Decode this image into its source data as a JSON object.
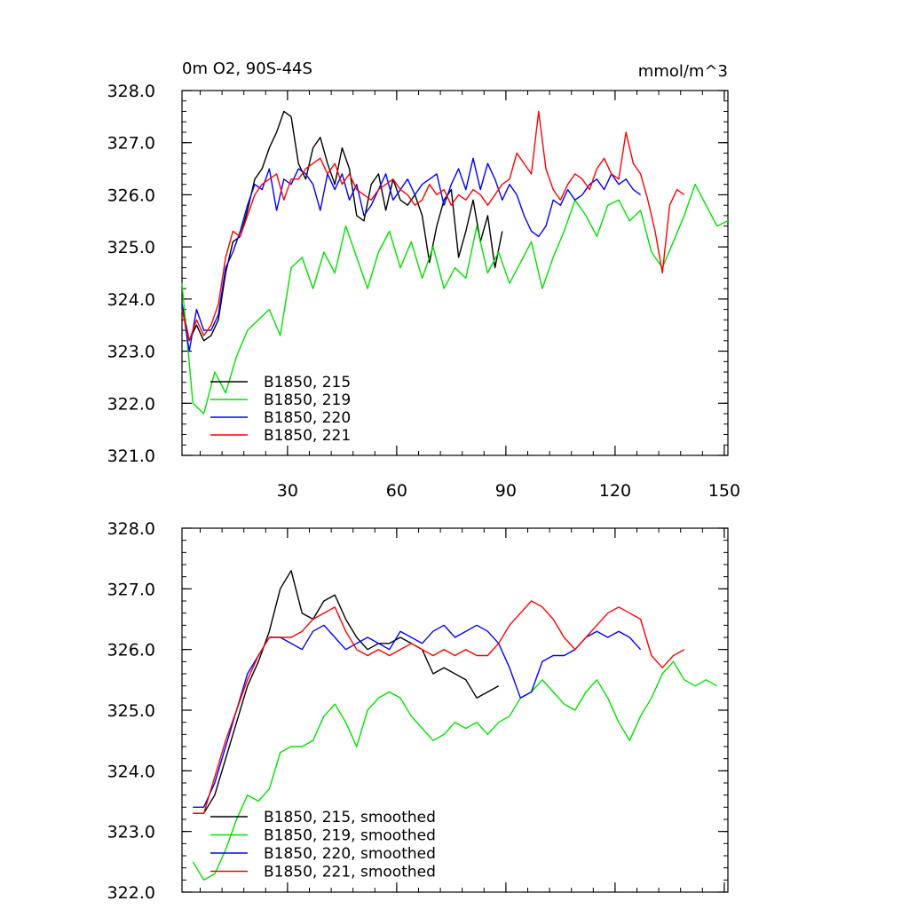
{
  "page_title": "0m O2, 90S-44S",
  "units": "mmol/m^3",
  "colors": {
    "s215": "#000000",
    "s219": "#00e000",
    "s220": "#0000ff",
    "s221": "#ff0000"
  },
  "chart_data": [
    {
      "type": "line",
      "title": "0m O2, 90S-44S",
      "units_label": "mmol/m^3",
      "xlim": [
        1,
        151
      ],
      "ylim": [
        321.0,
        328.0
      ],
      "xticks": [
        30,
        60,
        90,
        120,
        150
      ],
      "xtick_labels": [
        "30",
        "60",
        "90",
        "120",
        "150"
      ],
      "yticks": [
        321.0,
        322.0,
        323.0,
        324.0,
        325.0,
        326.0,
        327.0,
        328.0
      ],
      "ytick_labels": [
        "321.0",
        "322.0",
        "323.0",
        "324.0",
        "325.0",
        "326.0",
        "327.0",
        "328.0"
      ],
      "legend_position": "bottom-left",
      "series": [
        {
          "name": "B1850, 215",
          "color": "#000000",
          "x": [
            1,
            3,
            5,
            7,
            9,
            11,
            13,
            15,
            17,
            19,
            21,
            23,
            25,
            27,
            29,
            31,
            33,
            35,
            37,
            39,
            41,
            43,
            45,
            47,
            49,
            51,
            53,
            55,
            57,
            59,
            61,
            63,
            65,
            67,
            69,
            71,
            73,
            75,
            77,
            79,
            81,
            83,
            85,
            87,
            89
          ],
          "y": [
            323.9,
            323.2,
            323.5,
            323.2,
            323.3,
            323.6,
            324.5,
            325.1,
            325.2,
            325.7,
            326.3,
            326.5,
            326.9,
            327.2,
            327.6,
            327.5,
            326.6,
            326.3,
            326.9,
            327.1,
            326.6,
            326.2,
            326.9,
            326.5,
            325.6,
            325.5,
            326.2,
            326.4,
            325.7,
            326.3,
            325.9,
            325.8,
            326.0,
            325.6,
            324.7,
            325.4,
            325.9,
            326.1,
            324.8,
            325.3,
            325.9,
            325.1,
            325.6,
            324.6,
            325.3
          ]
        },
        {
          "name": "B1850, 219",
          "color": "#00e000",
          "x": [
            1,
            4,
            7,
            10,
            13,
            16,
            19,
            22,
            25,
            28,
            31,
            34,
            37,
            40,
            43,
            46,
            49,
            52,
            55,
            58,
            61,
            64,
            67,
            70,
            73,
            76,
            79,
            82,
            85,
            88,
            91,
            94,
            97,
            100,
            103,
            106,
            109,
            112,
            115,
            118,
            121,
            124,
            127,
            130,
            133,
            136,
            139,
            142,
            145,
            148,
            151
          ],
          "y": [
            324.3,
            322.0,
            321.8,
            322.6,
            322.2,
            322.9,
            323.4,
            323.6,
            323.8,
            323.3,
            324.6,
            324.8,
            324.2,
            324.9,
            324.5,
            325.4,
            324.8,
            324.2,
            324.9,
            325.3,
            324.6,
            325.1,
            324.4,
            325.0,
            324.2,
            324.6,
            324.4,
            325.4,
            324.5,
            324.9,
            324.3,
            324.7,
            325.1,
            324.2,
            324.8,
            325.3,
            325.9,
            325.6,
            325.2,
            325.8,
            325.9,
            325.5,
            325.7,
            324.9,
            324.6,
            325.1,
            325.6,
            326.2,
            325.8,
            325.4,
            325.5
          ]
        },
        {
          "name": "B1850, 220",
          "color": "#0000ff",
          "x": [
            1,
            3,
            5,
            7,
            9,
            11,
            13,
            15,
            17,
            19,
            21,
            23,
            25,
            27,
            29,
            31,
            33,
            35,
            37,
            39,
            41,
            43,
            45,
            47,
            49,
            51,
            53,
            55,
            57,
            59,
            61,
            63,
            65,
            67,
            69,
            71,
            73,
            75,
            77,
            79,
            81,
            83,
            85,
            87,
            89,
            91,
            93,
            95,
            97,
            99,
            101,
            103,
            105,
            107,
            109,
            111,
            113,
            115,
            117,
            119,
            121,
            123,
            125,
            127
          ],
          "y": [
            323.9,
            323.0,
            323.8,
            323.4,
            323.4,
            323.7,
            324.6,
            324.9,
            325.3,
            325.8,
            326.2,
            326.1,
            326.5,
            325.7,
            326.3,
            326.2,
            326.5,
            326.4,
            326.2,
            325.7,
            326.4,
            326.1,
            326.4,
            325.9,
            326.2,
            325.6,
            325.8,
            326.1,
            326.4,
            325.9,
            326.1,
            326.3,
            326.0,
            326.2,
            326.3,
            326.4,
            325.8,
            326.2,
            326.5,
            326.1,
            326.7,
            326.1,
            326.6,
            326.3,
            325.9,
            326.2,
            326.0,
            325.6,
            325.3,
            325.2,
            325.4,
            325.9,
            325.8,
            326.1,
            325.9,
            326.0,
            326.2,
            326.3,
            326.1,
            326.4,
            326.2,
            326.3,
            326.1,
            326.0
          ]
        },
        {
          "name": "B1850, 221",
          "color": "#ff0000",
          "x": [
            1,
            3,
            5,
            7,
            9,
            11,
            13,
            15,
            17,
            19,
            21,
            23,
            25,
            27,
            29,
            31,
            33,
            35,
            37,
            39,
            41,
            43,
            45,
            47,
            49,
            51,
            53,
            55,
            57,
            59,
            61,
            63,
            65,
            67,
            69,
            71,
            73,
            75,
            77,
            79,
            81,
            83,
            85,
            87,
            89,
            91,
            93,
            95,
            97,
            99,
            101,
            103,
            105,
            107,
            109,
            111,
            113,
            115,
            117,
            119,
            121,
            123,
            125,
            127,
            129,
            131,
            133,
            135,
            137,
            139
          ],
          "y": [
            323.8,
            323.2,
            323.6,
            323.3,
            323.5,
            323.9,
            324.8,
            325.3,
            325.2,
            325.6,
            326.0,
            326.2,
            326.3,
            326.4,
            325.9,
            326.3,
            326.3,
            326.5,
            326.6,
            326.7,
            326.4,
            326.6,
            326.2,
            326.4,
            326.1,
            326.0,
            325.9,
            326.1,
            326.2,
            326.3,
            326.1,
            326.0,
            325.8,
            325.9,
            326.2,
            326.0,
            326.1,
            325.8,
            326.0,
            325.9,
            326.1,
            326.0,
            325.8,
            326.0,
            326.2,
            326.3,
            326.8,
            326.6,
            326.4,
            327.6,
            326.5,
            326.1,
            325.9,
            326.2,
            326.4,
            326.3,
            326.1,
            326.5,
            326.7,
            326.4,
            326.3,
            327.2,
            326.6,
            326.4,
            325.9,
            325.3,
            324.5,
            325.8,
            326.1,
            326.0
          ]
        }
      ]
    },
    {
      "type": "line",
      "title": "",
      "xlim": [
        1,
        151
      ],
      "ylim": [
        322.0,
        328.0
      ],
      "xticks": [
        30,
        60,
        90,
        120,
        150
      ],
      "yticks": [
        322.0,
        323.0,
        324.0,
        325.0,
        326.0,
        327.0,
        328.0
      ],
      "ytick_labels": [
        "322.0",
        "323.0",
        "324.0",
        "325.0",
        "326.0",
        "327.0",
        "328.0"
      ],
      "legend_position": "bottom-left",
      "series": [
        {
          "name": "B1850, 215, smoothed",
          "color": "#000000",
          "x": [
            4,
            7,
            10,
            13,
            16,
            19,
            22,
            25,
            28,
            31,
            34,
            37,
            40,
            43,
            46,
            49,
            52,
            55,
            58,
            61,
            64,
            67,
            70,
            73,
            76,
            79,
            82,
            85,
            88
          ],
          "y": [
            323.3,
            323.3,
            323.6,
            324.2,
            324.8,
            325.4,
            325.8,
            326.3,
            327.0,
            327.3,
            326.6,
            326.5,
            326.8,
            326.9,
            326.5,
            326.2,
            326.0,
            326.1,
            326.1,
            326.2,
            326.1,
            326.0,
            325.6,
            325.7,
            325.6,
            325.5,
            325.2,
            325.3,
            325.4
          ]
        },
        {
          "name": "B1850, 219, smoothed",
          "color": "#00e000",
          "x": [
            4,
            7,
            10,
            13,
            16,
            19,
            22,
            25,
            28,
            31,
            34,
            37,
            40,
            43,
            46,
            49,
            52,
            55,
            58,
            61,
            64,
            67,
            70,
            73,
            76,
            79,
            82,
            85,
            88,
            91,
            94,
            97,
            100,
            103,
            106,
            109,
            112,
            115,
            118,
            121,
            124,
            127,
            130,
            133,
            136,
            139,
            142,
            145,
            148
          ],
          "y": [
            322.5,
            322.2,
            322.3,
            322.7,
            323.2,
            323.6,
            323.5,
            323.7,
            324.3,
            324.4,
            324.4,
            324.5,
            324.9,
            325.1,
            324.8,
            324.4,
            325.0,
            325.2,
            325.3,
            325.2,
            324.9,
            324.7,
            324.5,
            324.6,
            324.8,
            324.7,
            324.8,
            324.6,
            324.8,
            324.9,
            325.2,
            325.3,
            325.5,
            325.3,
            325.1,
            325.0,
            325.3,
            325.5,
            325.2,
            324.8,
            324.5,
            324.9,
            325.2,
            325.6,
            325.8,
            325.5,
            325.4,
            325.5,
            325.4
          ]
        },
        {
          "name": "B1850, 220, smoothed",
          "color": "#0000ff",
          "x": [
            4,
            7,
            10,
            13,
            16,
            19,
            22,
            25,
            28,
            31,
            34,
            37,
            40,
            43,
            46,
            49,
            52,
            55,
            58,
            61,
            64,
            67,
            70,
            73,
            76,
            79,
            82,
            85,
            88,
            91,
            94,
            97,
            100,
            103,
            106,
            109,
            112,
            115,
            118,
            121,
            124,
            127
          ],
          "y": [
            323.4,
            323.4,
            323.8,
            324.4,
            325.0,
            325.6,
            325.9,
            326.2,
            326.2,
            326.1,
            326.0,
            326.3,
            326.4,
            326.2,
            326.0,
            326.1,
            326.2,
            326.1,
            326.0,
            326.3,
            326.2,
            326.1,
            326.3,
            326.4,
            326.2,
            326.3,
            326.4,
            326.3,
            326.1,
            325.7,
            325.2,
            325.3,
            325.8,
            325.9,
            325.9,
            326.0,
            326.2,
            326.3,
            326.2,
            326.3,
            326.2,
            326.0
          ]
        },
        {
          "name": "B1850, 221, smoothed",
          "color": "#ff0000",
          "x": [
            4,
            7,
            10,
            13,
            16,
            19,
            22,
            25,
            28,
            31,
            34,
            37,
            40,
            43,
            46,
            49,
            52,
            55,
            58,
            61,
            64,
            67,
            70,
            73,
            76,
            79,
            82,
            85,
            88,
            91,
            94,
            97,
            100,
            103,
            106,
            109,
            112,
            115,
            118,
            121,
            124,
            127,
            130,
            133,
            136,
            139
          ],
          "y": [
            323.3,
            323.3,
            323.9,
            324.5,
            325.0,
            325.5,
            325.9,
            326.2,
            326.2,
            326.2,
            326.3,
            326.5,
            326.6,
            326.7,
            326.3,
            326.0,
            325.9,
            326.0,
            325.9,
            326.0,
            326.1,
            326.0,
            325.9,
            326.0,
            325.9,
            326.0,
            325.9,
            325.9,
            326.1,
            326.4,
            326.6,
            326.8,
            326.7,
            326.5,
            326.2,
            326.0,
            326.2,
            326.4,
            326.6,
            326.7,
            326.6,
            326.5,
            325.9,
            325.7,
            325.9,
            326.0
          ]
        }
      ]
    }
  ]
}
